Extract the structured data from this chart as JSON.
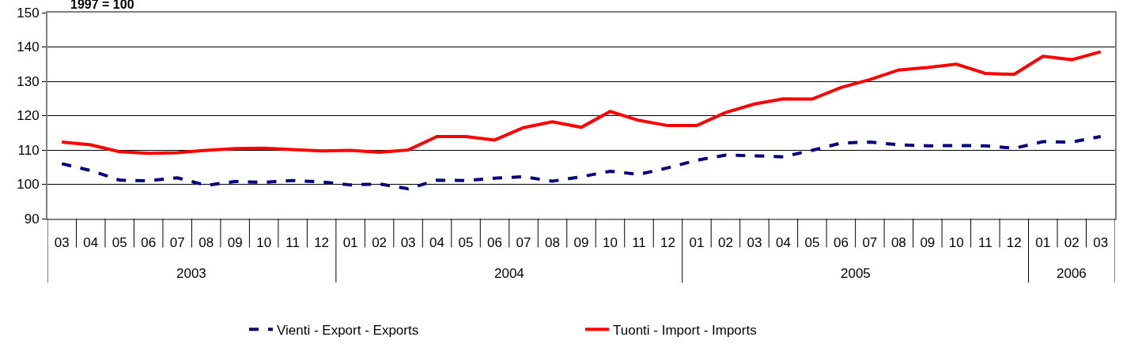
{
  "chart_data": {
    "type": "line",
    "ylabel": "1997 = 100",
    "categories": [
      "03",
      "04",
      "05",
      "06",
      "07",
      "08",
      "09",
      "10",
      "11",
      "12",
      "01",
      "02",
      "03",
      "04",
      "05",
      "06",
      "07",
      "08",
      "09",
      "10",
      "11",
      "12",
      "01",
      "02",
      "03",
      "04",
      "05",
      "06",
      "07",
      "08",
      "09",
      "10",
      "11",
      "12",
      "01",
      "02",
      "03"
    ],
    "annotations": [
      "2003",
      "2004",
      "2005",
      "2006"
    ],
    "series": [
      {
        "name": "Vienti - Export - Exports",
        "color": "#000080",
        "line_style": "dashed",
        "values": [
          106.0,
          104.0,
          101.2,
          101.0,
          101.9,
          99.7,
          100.8,
          100.6,
          101.1,
          100.7,
          99.8,
          100.1,
          98.7,
          101.2,
          101.1,
          101.8,
          102.2,
          100.9,
          102.2,
          103.8,
          102.9,
          104.8,
          107.0,
          108.5,
          108.3,
          108.0,
          109.9,
          112.0,
          112.3,
          111.5,
          111.2,
          111.3,
          111.2,
          110.5,
          112.4,
          112.3,
          113.9
        ]
      },
      {
        "name": "Tuonti - Import - Imports",
        "color": "#ff0000",
        "line_style": "solid",
        "values": [
          112.3,
          111.5,
          109.5,
          109.0,
          109.2,
          109.9,
          110.4,
          110.5,
          110.1,
          109.7,
          109.9,
          109.3,
          110.0,
          113.9,
          113.9,
          112.9,
          116.5,
          118.2,
          116.6,
          121.2,
          118.6,
          117.1,
          117.1,
          120.9,
          123.4,
          124.9,
          124.8,
          128.2,
          130.5,
          133.3,
          134.0,
          135.0,
          132.3,
          132.0,
          137.3,
          136.3,
          138.6
        ]
      }
    ],
    "ylim": [
      90,
      150
    ],
    "yticks": [
      90,
      100,
      110,
      120,
      130,
      140,
      150
    ],
    "grid": "y",
    "legend": "bottom",
    "marker": "none"
  }
}
